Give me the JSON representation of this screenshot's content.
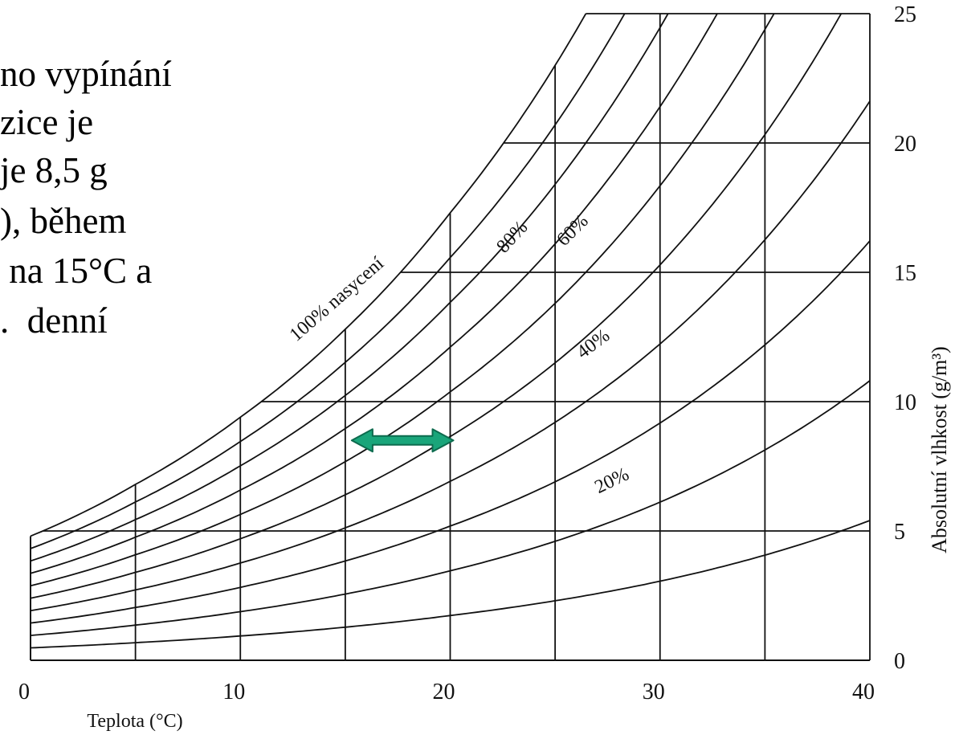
{
  "slide": {
    "text_lines": [
      "no vypínání",
      "zice je",
      "je 8,5 g",
      "), během",
      " na 15°C a",
      ".  denní"
    ]
  },
  "chart_data": {
    "type": "line",
    "xlabel": "Teplota (°C)",
    "ylabel": "Absolutní vlhkost (g/m³)",
    "xlim": [
      0,
      40
    ],
    "ylim": [
      0,
      25
    ],
    "x_ticks": [
      0,
      10,
      20,
      30,
      40
    ],
    "y_ticks": [
      0,
      5,
      10,
      15,
      20,
      25
    ],
    "x_tick_labels": [
      "0",
      "10",
      "20",
      "30",
      "40"
    ],
    "y_tick_labels": [
      "0",
      "5",
      "10",
      "15",
      "20",
      "25"
    ],
    "grid": true,
    "curve_labels": [
      "100% nasycení",
      "80%",
      "60%",
      "40%",
      "20%"
    ],
    "saturation_curve": {
      "x": [
        0,
        5,
        10,
        15,
        20,
        25
      ],
      "y": [
        4.8,
        6.8,
        9.4,
        12.8,
        17.3,
        23.0
      ]
    },
    "series": [
      {
        "name": "100% nasycení",
        "relative_humidity": 1.0
      },
      {
        "relative_humidity": 0.9
      },
      {
        "name": "80%",
        "relative_humidity": 0.8
      },
      {
        "relative_humidity": 0.7
      },
      {
        "name": "60%",
        "relative_humidity": 0.6
      },
      {
        "relative_humidity": 0.5
      },
      {
        "name": "40%",
        "relative_humidity": 0.4
      },
      {
        "relative_humidity": 0.3
      },
      {
        "name": "20%",
        "relative_humidity": 0.2
      },
      {
        "relative_humidity": 0.1
      }
    ],
    "marker": {
      "type": "double-arrow",
      "x_start": 15,
      "x_end": 20,
      "y": 8.5,
      "color": "#1aa57a"
    }
  }
}
